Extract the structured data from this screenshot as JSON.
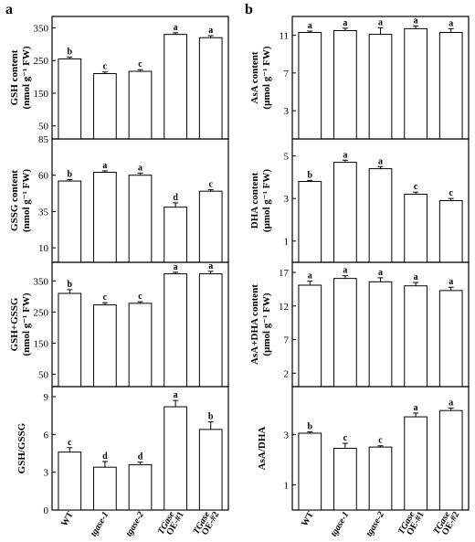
{
  "panel_letters": [
    "a",
    "b"
  ],
  "x_categories": [
    "WT",
    "tgase-1",
    "tgase-2",
    "TGase OE-#1",
    "TGase OE-#2"
  ],
  "chart_data": [
    {
      "type": "bar",
      "panel": "a",
      "ylabel_lines": [
        "GSH content",
        "(nmol g⁻¹ FW)"
      ],
      "yticks": [
        50,
        150,
        250,
        350
      ],
      "ylim": [
        10,
        385
      ],
      "categories": [
        "WT",
        "tgase-1",
        "tgase-2",
        "TGase OE-#1",
        "TGase OE-#2"
      ],
      "values": [
        255,
        210,
        217,
        330,
        320
      ],
      "errors": [
        5,
        5,
        5,
        5,
        6
      ],
      "letters": [
        "b",
        "c",
        "c",
        "a",
        "a"
      ]
    },
    {
      "type": "bar",
      "panel": "b",
      "ylabel_lines": [
        "AsA content",
        "(μmol g⁻¹ FW)"
      ],
      "yticks": [
        3,
        7,
        11
      ],
      "ylim": [
        0,
        13
      ],
      "categories": [
        "WT",
        "tgase-1",
        "tgase-2",
        "TGase OE-#1",
        "TGase OE-#2"
      ],
      "values": [
        11.3,
        11.5,
        11.1,
        11.7,
        11.3
      ],
      "errors": [
        0.15,
        0.25,
        0.7,
        0.3,
        0.4
      ],
      "letters": [
        "a",
        "a",
        "a",
        "a",
        "a"
      ]
    },
    {
      "type": "bar",
      "panel": "a",
      "ylabel_lines": [
        "GSSG content",
        "(nmol g⁻¹ FW)"
      ],
      "yticks": [
        10,
        35,
        60,
        85
      ],
      "ylim": [
        0,
        85
      ],
      "categories": [
        "WT",
        "tgase-1",
        "tgase-2",
        "TGase OE-#1",
        "TGase OE-#2"
      ],
      "values": [
        56,
        62,
        60,
        38,
        49
      ],
      "errors": [
        1,
        1,
        1.5,
        3,
        1
      ],
      "letters": [
        "b",
        "a",
        "a",
        "d",
        "c"
      ]
    },
    {
      "type": "bar",
      "panel": "b",
      "ylabel_lines": [
        "DHA content",
        "(μmol g⁻¹ FW)"
      ],
      "yticks": [
        1,
        3,
        5
      ],
      "ylim": [
        0,
        5.8
      ],
      "categories": [
        "WT",
        "tgase-1",
        "tgase-2",
        "TGase OE-#1",
        "TGase OE-#2"
      ],
      "values": [
        3.8,
        4.7,
        4.4,
        3.2,
        2.9
      ],
      "errors": [
        0.05,
        0.1,
        0.1,
        0.1,
        0.1
      ],
      "letters": [
        "b",
        "a",
        "a",
        "c",
        "c"
      ]
    },
    {
      "type": "bar",
      "panel": "a",
      "ylabel_lines": [
        "GSH+GSSG",
        "(nmol g⁻¹ FW)"
      ],
      "yticks": [
        50,
        150,
        250,
        350
      ],
      "ylim": [
        10,
        410
      ],
      "categories": [
        "WT",
        "tgase-1",
        "tgase-2",
        "TGase OE-#1",
        "TGase OE-#2"
      ],
      "values": [
        310,
        273,
        278,
        373,
        373
      ],
      "errors": [
        12,
        7,
        5,
        5,
        8
      ],
      "letters": [
        "b",
        "c",
        "c",
        "a",
        "a"
      ]
    },
    {
      "type": "bar",
      "panel": "b",
      "ylabel_lines": [
        "AsA+DHA content",
        "(μmol g⁻¹ FW)"
      ],
      "yticks": [
        2,
        7,
        12,
        17
      ],
      "ylim": [
        0,
        18.5
      ],
      "categories": [
        "WT",
        "tgase-1",
        "tgase-2",
        "TGase OE-#1",
        "TGase OE-#2"
      ],
      "values": [
        15.1,
        16.1,
        15.6,
        15.0,
        14.3
      ],
      "errors": [
        0.6,
        0.4,
        0.6,
        0.5,
        0.5
      ],
      "letters": [
        "a",
        "a",
        "a",
        "a",
        "a"
      ]
    },
    {
      "type": "bar",
      "panel": "a",
      "ylabel_lines": [
        "GSH/GSSG"
      ],
      "yticks": [
        0,
        3,
        6,
        9
      ],
      "ylim": [
        0,
        9.8
      ],
      "categories": [
        "WT",
        "tgase-1",
        "tgase-2",
        "TGase OE-#1",
        "TGase OE-#2"
      ],
      "values": [
        4.6,
        3.4,
        3.6,
        8.2,
        6.4
      ],
      "errors": [
        0.35,
        0.45,
        0.2,
        0.5,
        0.6
      ],
      "letters": [
        "c",
        "d",
        "d",
        "a",
        "b"
      ]
    },
    {
      "type": "bar",
      "panel": "b",
      "ylabel_lines": [
        "AsA/DHA"
      ],
      "yticks": [
        1,
        3
      ],
      "ylim": [
        0,
        4.9
      ],
      "categories": [
        "WT",
        "tgase-1",
        "tgase-2",
        "TGase OE-#1",
        "TGase OE-#2"
      ],
      "values": [
        3.05,
        2.45,
        2.5,
        3.7,
        3.95
      ],
      "errors": [
        0.05,
        0.2,
        0.05,
        0.15,
        0.1
      ],
      "letters": [
        "b",
        "c",
        "c",
        "a",
        "a"
      ]
    }
  ]
}
